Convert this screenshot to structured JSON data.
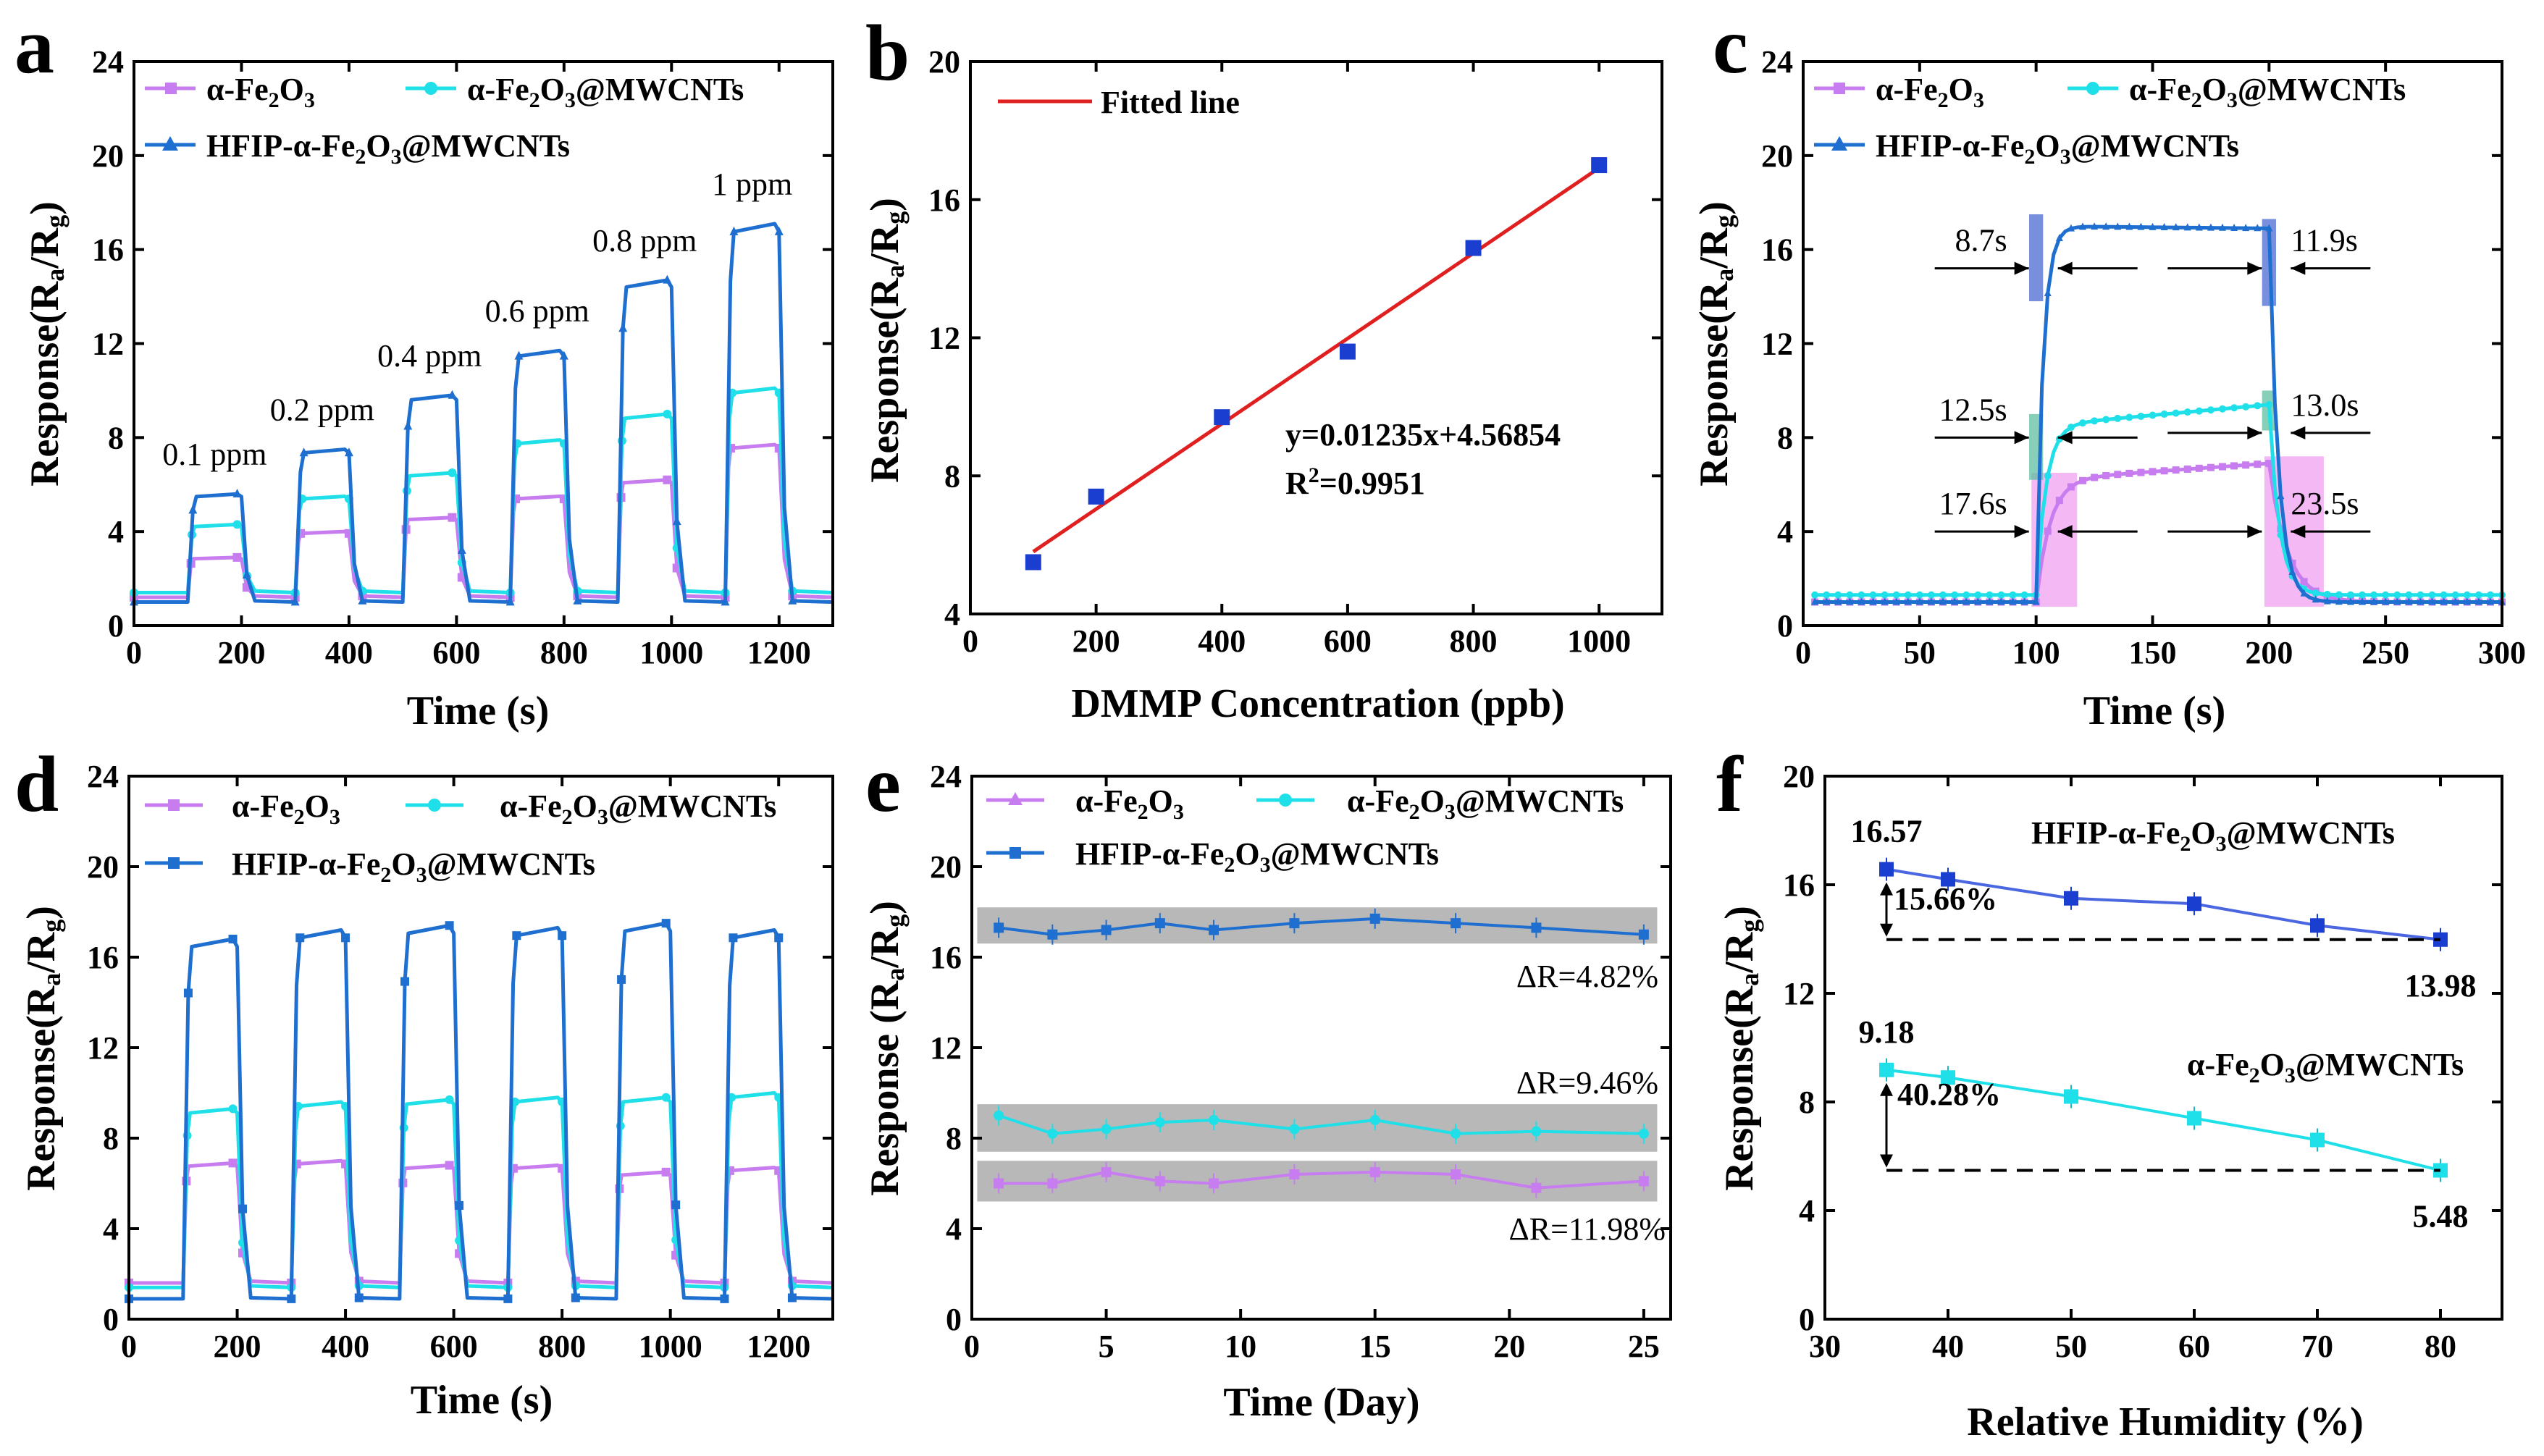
{
  "figure": {
    "panel_labels": [
      "a",
      "b",
      "c",
      "d",
      "e",
      "f"
    ]
  },
  "colors": {
    "fe2o3": "#c77df0",
    "mwcnt": "#1fe0e8",
    "hfip": "#1e6fcf",
    "fit": "#e02020",
    "points": "#1a3fd0",
    "band": "#b8b8b8",
    "arrow": "#000000"
  },
  "chart_data": [
    {
      "panel": "a",
      "type": "line",
      "title": "",
      "xlabel": "Time (s)",
      "ylabel": "Response(Ra/Rg)",
      "xlim": [
        0,
        1300
      ],
      "ylim": [
        0,
        24
      ],
      "xticks": [
        0,
        200,
        400,
        600,
        800,
        1000,
        1200
      ],
      "yticks": [
        0,
        4,
        8,
        12,
        16,
        20,
        24
      ],
      "pulse_starts": [
        100,
        300,
        500,
        700,
        900,
        1100
      ],
      "pulse_width": 100,
      "series": [
        {
          "name": "α-Fe2O3",
          "baseline": 1.2,
          "peaks": [
            2.9,
            4.0,
            4.6,
            5.5,
            6.2,
            7.7
          ]
        },
        {
          "name": "α-Fe2O3@MWCNTs",
          "baseline": 1.4,
          "peaks": [
            4.3,
            5.5,
            6.5,
            7.9,
            9.0,
            10.1
          ]
        },
        {
          "name": "HFIP-α-Fe2O3@MWCNTs",
          "baseline": 1.0,
          "peaks": [
            5.6,
            7.5,
            9.8,
            11.7,
            14.7,
            17.1
          ]
        }
      ],
      "annotations": [
        "0.1 ppm",
        "0.2 ppm",
        "0.4 ppm",
        "0.6 ppm",
        "0.8 ppm",
        "1 ppm"
      ],
      "legend": [
        "α-Fe2O3",
        "α-Fe2O3@MWCNTs",
        "HFIP-α-Fe2O3@MWCNTs"
      ]
    },
    {
      "panel": "b",
      "type": "scatter",
      "title": "",
      "xlabel": "DMMP Concentration (ppb)",
      "ylabel": "Response(Ra/Rg)",
      "xlim": [
        0,
        1100
      ],
      "ylim": [
        4,
        20
      ],
      "xticks": [
        0,
        200,
        400,
        600,
        800,
        1000
      ],
      "yticks": [
        4,
        8,
        12,
        16,
        20
      ],
      "x": [
        100,
        200,
        400,
        600,
        800,
        1000
      ],
      "y": [
        5.5,
        7.4,
        9.7,
        11.6,
        14.6,
        17.0
      ],
      "fit": {
        "slope": 0.01235,
        "intercept": 4.56854,
        "x_range": [
          100,
          1000
        ]
      },
      "legend": [
        "Fitted line"
      ],
      "equation": "y=0.01235x+4.56854",
      "r2": "R2=0.9951"
    },
    {
      "panel": "c",
      "type": "line",
      "title": "",
      "xlabel": "Time (s)",
      "ylabel": "Response(Ra/Rg)",
      "xlim": [
        0,
        300
      ],
      "ylim": [
        0,
        24
      ],
      "xticks": [
        0,
        50,
        100,
        150,
        200,
        250,
        300
      ],
      "yticks": [
        0,
        4,
        8,
        12,
        16,
        20,
        24
      ],
      "gas_on": 100,
      "gas_off": 200,
      "series": [
        {
          "name": "α-Fe2O3",
          "baseline": 1.0,
          "plateau_start": 6.2,
          "plateau_end": 6.9,
          "t_res": 17.6,
          "t_rec": 23.5
        },
        {
          "name": "α-Fe2O3@MWCNTs",
          "baseline": 1.3,
          "plateau_start": 8.5,
          "plateau_end": 9.4,
          "t_res": 12.5,
          "t_rec": 13.0
        },
        {
          "name": "HFIP-α-Fe2O3@MWCNTs",
          "baseline": 1.0,
          "plateau_start": 17.0,
          "plateau_end": 16.9,
          "t_res": 8.7,
          "t_rec": 11.9
        }
      ],
      "annotations": [
        "8.7s",
        "11.9s",
        "12.5s",
        "13.0s",
        "17.6s",
        "23.5s"
      ],
      "legend": [
        "α-Fe2O3",
        "α-Fe2O3@MWCNTs",
        "HFIP-α-Fe2O3@MWCNTs"
      ]
    },
    {
      "panel": "d",
      "type": "line",
      "title": "",
      "xlabel": "Time (s)",
      "ylabel": "Response(Ra/Rg)",
      "xlim": [
        0,
        1300
      ],
      "ylim": [
        0,
        24
      ],
      "xticks": [
        0,
        200,
        400,
        600,
        800,
        1000,
        1200
      ],
      "yticks": [
        0,
        4,
        8,
        12,
        16,
        20,
        24
      ],
      "pulse_starts": [
        100,
        300,
        500,
        700,
        900,
        1100
      ],
      "pulse_width": 100,
      "series": [
        {
          "name": "α-Fe2O3",
          "baseline": 1.6,
          "peaks": [
            6.9,
            7.0,
            6.8,
            6.8,
            6.5,
            6.7
          ]
        },
        {
          "name": "α-Fe2O3@MWCNTs",
          "baseline": 1.4,
          "peaks": [
            9.3,
            9.6,
            9.7,
            9.8,
            9.8,
            10.0
          ]
        },
        {
          "name": "HFIP-α-Fe2O3@MWCNTs",
          "baseline": 0.9,
          "peaks": [
            16.8,
            17.2,
            17.4,
            17.3,
            17.5,
            17.2
          ]
        }
      ],
      "legend": [
        "α-Fe2O3",
        "α-Fe2O3@MWCNTs",
        "HFIP-α-Fe2O3@MWCNTs"
      ]
    },
    {
      "panel": "e",
      "type": "line",
      "title": "",
      "xlabel": "Time (Day)",
      "ylabel": "Response (Ra/Rg)",
      "xlim": [
        0,
        26
      ],
      "ylim": [
        0,
        24
      ],
      "xticks": [
        0,
        5,
        10,
        15,
        20,
        25
      ],
      "yticks": [
        0,
        4,
        8,
        12,
        16,
        20,
        24
      ],
      "x": [
        1,
        3,
        5,
        7,
        9,
        12,
        15,
        18,
        21,
        25
      ],
      "series": [
        {
          "name": "α-Fe2O3",
          "values": [
            6.0,
            6.0,
            6.5,
            6.1,
            6.0,
            6.4,
            6.5,
            6.4,
            5.8,
            6.1
          ]
        },
        {
          "name": "α-Fe2O3@MWCNTs",
          "values": [
            9.0,
            8.2,
            8.4,
            8.7,
            8.8,
            8.4,
            8.8,
            8.2,
            8.3,
            8.2
          ]
        },
        {
          "name": "HFIP-α-Fe2O3@MWCNTs",
          "values": [
            17.3,
            17.0,
            17.2,
            17.5,
            17.2,
            17.5,
            17.7,
            17.5,
            17.3,
            17.0
          ]
        }
      ],
      "bands": [
        {
          "y0": 16.6,
          "y1": 18.2
        },
        {
          "y0": 7.4,
          "y1": 9.5
        },
        {
          "y0": 5.2,
          "y1": 7.0
        }
      ],
      "annotations": [
        "ΔR=4.82%",
        "ΔR=9.46%",
        "ΔR=11.98%"
      ],
      "legend": [
        "α-Fe2O3",
        "α-Fe2O3@MWCNTs",
        "HFIP-α-Fe2O3@MWCNTs"
      ]
    },
    {
      "panel": "f",
      "type": "line",
      "title": "",
      "xlabel": "Relative Humidity (%)",
      "ylabel": "Response(Ra/Rg)",
      "xlim": [
        30,
        85
      ],
      "ylim": [
        0,
        20
      ],
      "xticks": [
        30,
        40,
        50,
        60,
        70,
        80
      ],
      "yticks": [
        0,
        4,
        8,
        12,
        16,
        20
      ],
      "x": [
        35,
        40,
        50,
        60,
        70,
        80
      ],
      "series": [
        {
          "name": "HFIP-α-Fe2O3@MWCNTs",
          "values": [
            16.57,
            16.2,
            15.5,
            15.3,
            14.5,
            13.98
          ]
        },
        {
          "name": "α-Fe2O3@MWCNTs",
          "values": [
            9.18,
            8.9,
            8.2,
            7.4,
            6.6,
            5.48
          ]
        }
      ],
      "annotations": [
        "16.57",
        "13.98",
        "15.66%",
        "9.18",
        "5.48",
        "40.28%"
      ]
    }
  ]
}
